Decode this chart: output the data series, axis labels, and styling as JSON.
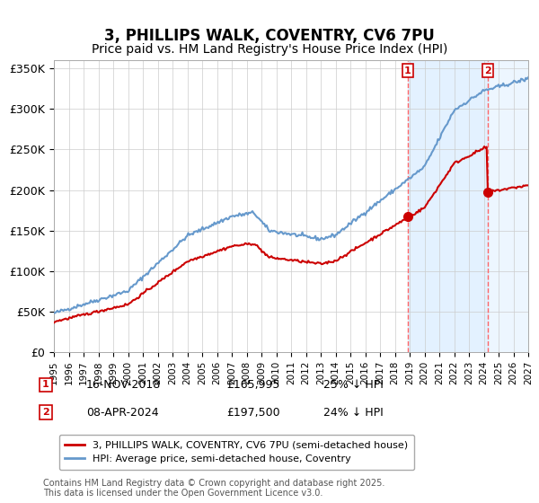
{
  "title": "3, PHILLIPS WALK, COVENTRY, CV6 7PU",
  "subtitle": "Price paid vs. HM Land Registry's House Price Index (HPI)",
  "title_fontsize": 12,
  "subtitle_fontsize": 10,
  "ylabel": "",
  "ylim": [
    0,
    360000
  ],
  "yticks": [
    0,
    50000,
    100000,
    150000,
    200000,
    250000,
    300000,
    350000
  ],
  "ytick_labels": [
    "£0",
    "£50K",
    "£100K",
    "£150K",
    "£200K",
    "£250K",
    "£300K",
    "£350K"
  ],
  "hpi_color": "#6699cc",
  "price_color": "#cc0000",
  "marker1_date": 2018.88,
  "marker2_date": 2024.27,
  "marker1_price": 165995,
  "marker2_price": 197500,
  "vline_color": "#ff6666",
  "shade_color": "#ddeeff",
  "legend_label_price": "3, PHILLIPS WALK, COVENTRY, CV6 7PU (semi-detached house)",
  "legend_label_hpi": "HPI: Average price, semi-detached house, Coventry",
  "annotation1": [
    "1",
    "16-NOV-2018",
    "£165,995",
    "25% ↓ HPI"
  ],
  "annotation2": [
    "2",
    "08-APR-2024",
    "£197,500",
    "24% ↓ HPI"
  ],
  "footer": "Contains HM Land Registry data © Crown copyright and database right 2025.\nThis data is licensed under the Open Government Licence v3.0.",
  "xmin": 1995,
  "xmax": 2027
}
